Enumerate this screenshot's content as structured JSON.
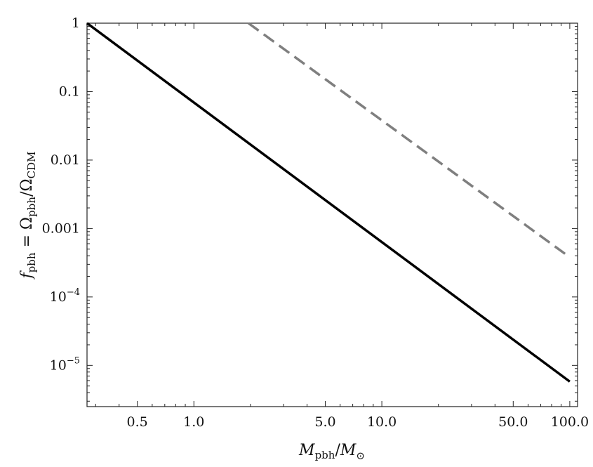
{
  "chart_data": {
    "type": "line",
    "xscale": "log",
    "yscale": "log",
    "xlim": [
      0.27,
      110
    ],
    "ylim": [
      2.5e-06,
      1.0
    ],
    "grid": false,
    "xlabel": {
      "main": "M",
      "sub1": "pbh",
      "sep": "/",
      "main2": "M",
      "sub2": "⊙"
    },
    "ylabel": {
      "f": "f",
      "fsub": "pbh",
      "eq": " = Ω",
      "sub1": "pbh",
      "sep": "/Ω",
      "sub2": "CDM"
    },
    "x_ticks": [
      {
        "value": 0.5,
        "label": "0.5"
      },
      {
        "value": 1.0,
        "label": "1.0"
      },
      {
        "value": 5.0,
        "label": "5.0"
      },
      {
        "value": 10.0,
        "label": "10.0"
      },
      {
        "value": 50.0,
        "label": "50.0"
      },
      {
        "value": 100.0,
        "label": "100.0"
      }
    ],
    "y_ticks": [
      {
        "value": 1,
        "label": "1"
      },
      {
        "value": 0.1,
        "label": "0.1"
      },
      {
        "value": 0.01,
        "label": "0.01"
      },
      {
        "value": 0.001,
        "label": "0.001"
      },
      {
        "value": 0.0001,
        "base": "10",
        "exp": "−4"
      },
      {
        "value": 1e-05,
        "base": "10",
        "exp": "−5"
      }
    ],
    "series": [
      {
        "style": "solid",
        "color": "#000000",
        "x": [
          0.27,
          100
        ],
        "y": [
          1.0,
          5.8e-06
        ]
      },
      {
        "style": "dashed",
        "color": "#7f7f7f",
        "x": [
          1.95,
          100
        ],
        "y": [
          1.0,
          0.00038
        ]
      }
    ]
  }
}
